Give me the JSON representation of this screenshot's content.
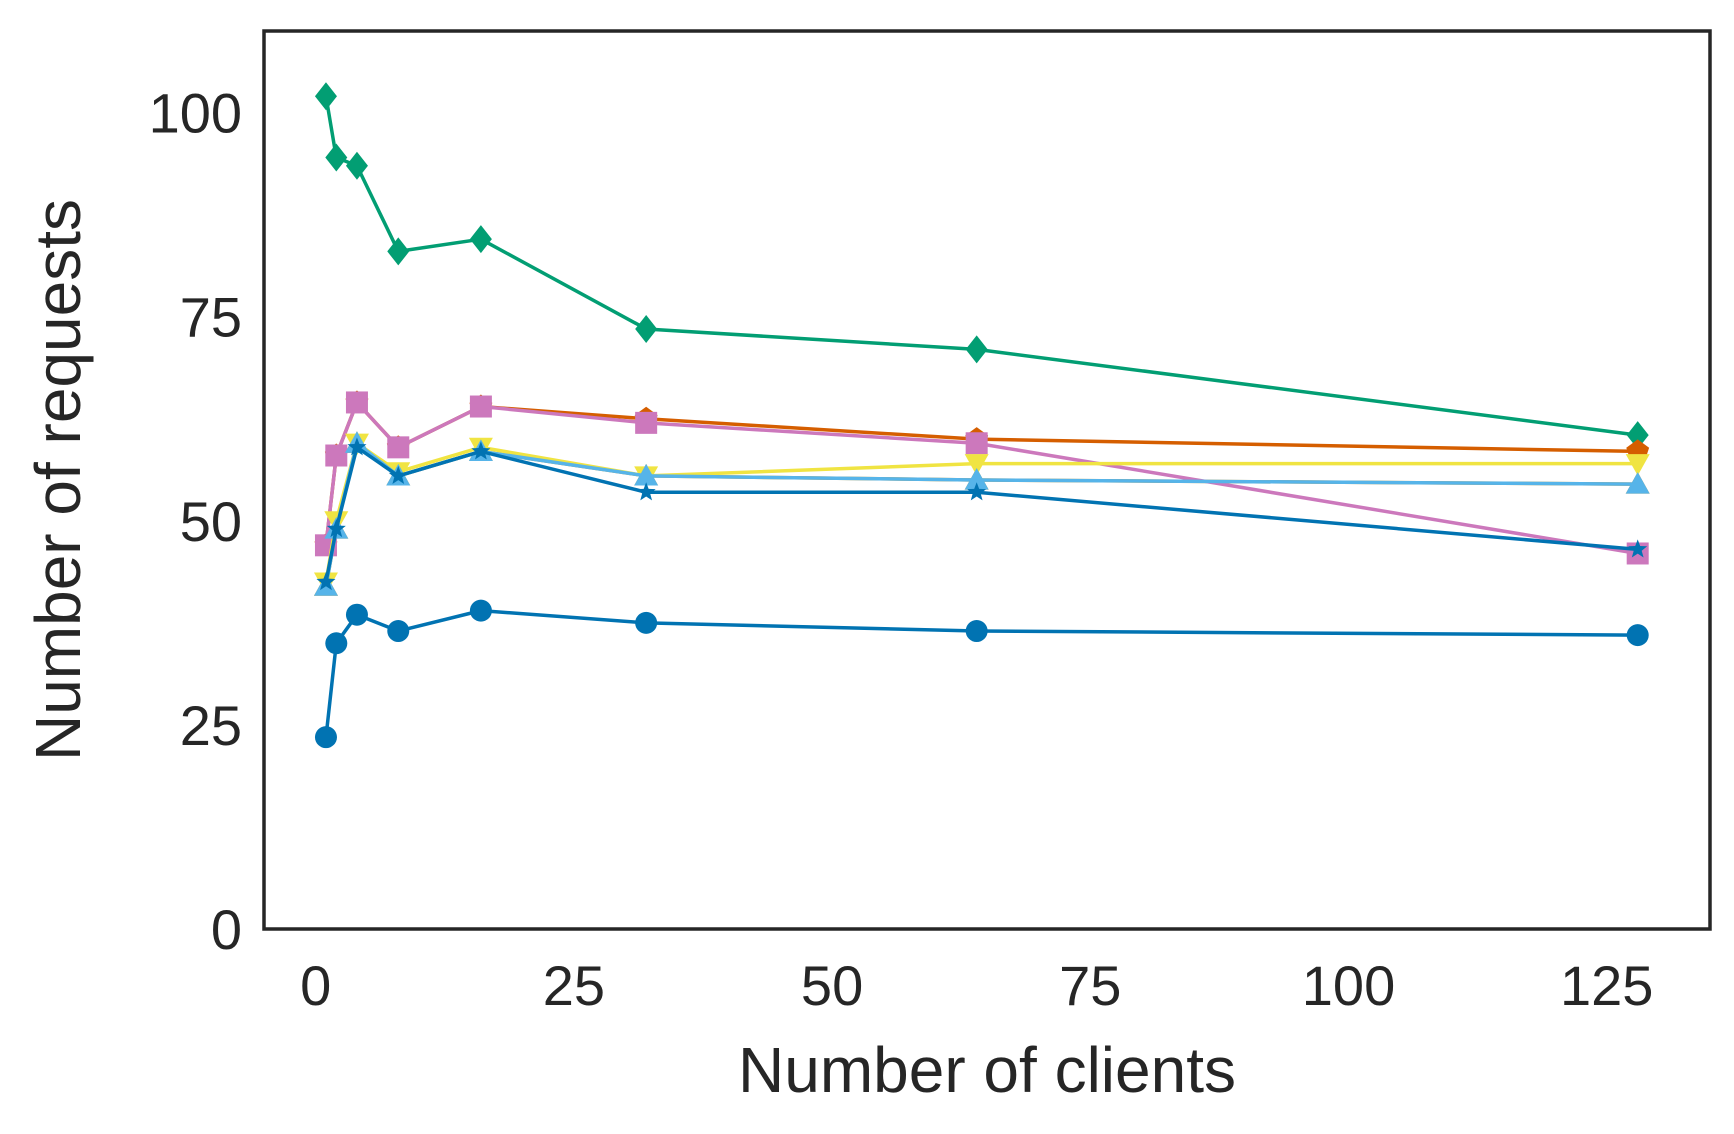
{
  "chart_data": {
    "type": "line",
    "title": "",
    "xlabel": "Number of clients",
    "ylabel": "Number of requests",
    "xlim": [
      -5,
      135
    ],
    "ylim": [
      0,
      110
    ],
    "xticks": [
      0,
      25,
      50,
      75,
      100,
      125
    ],
    "yticks": [
      0,
      25,
      50,
      75,
      100
    ],
    "grid": false,
    "x": [
      1,
      2,
      4,
      8,
      16,
      32,
      64,
      128
    ],
    "series": [
      {
        "color": "#0173b2",
        "marker": "circle",
        "values": [
          23.5,
          35.0,
          38.5,
          36.5,
          39.0,
          37.5,
          36.5,
          36.0
        ]
      },
      {
        "color": "#de8f05",
        "marker": "triangle-up",
        "values": [
          42.0,
          49.0,
          59.5,
          55.5,
          58.5,
          55.5,
          55.0,
          54.5
        ]
      },
      {
        "color": "#029e73",
        "marker": "diamond",
        "values": [
          102.0,
          94.5,
          93.5,
          83.0,
          84.5,
          73.5,
          71.0,
          60.5
        ]
      },
      {
        "color": "#d55e00",
        "marker": "pentagon",
        "values": [
          47.0,
          58.0,
          64.5,
          59.0,
          64.0,
          62.5,
          60.0,
          58.5
        ]
      },
      {
        "color": "#cc78bc",
        "marker": "square",
        "values": [
          47.0,
          58.0,
          64.5,
          59.0,
          64.0,
          62.0,
          59.5,
          46.0
        ]
      },
      {
        "color": "#f0e442",
        "marker": "triangle-down",
        "values": [
          42.5,
          50.0,
          59.5,
          56.0,
          59.0,
          55.5,
          57.0,
          57.0
        ]
      },
      {
        "color": "#56b4e9",
        "marker": "triangle-up",
        "values": [
          42.0,
          49.0,
          59.5,
          55.5,
          58.5,
          55.5,
          55.0,
          54.5
        ]
      },
      {
        "color": "#0173b2",
        "marker": "star",
        "values": [
          42.5,
          49.0,
          59.0,
          55.5,
          58.5,
          53.5,
          53.5,
          46.5
        ]
      }
    ]
  }
}
